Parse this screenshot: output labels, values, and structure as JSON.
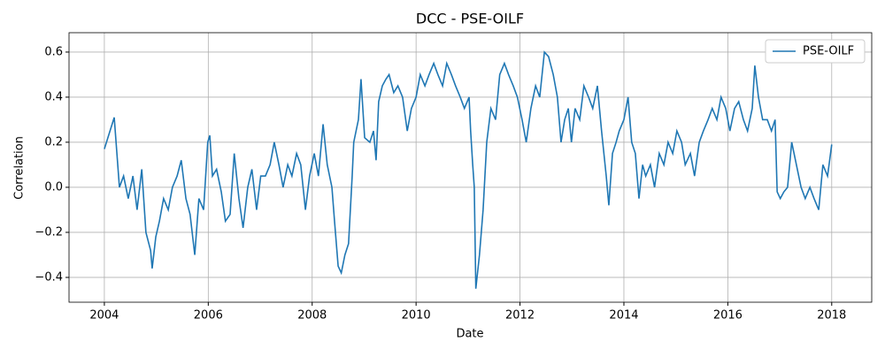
{
  "chart_data": {
    "type": "line",
    "title": "DCC - PSE-OILF",
    "x_label": "Date",
    "y_label": "Correlation",
    "x": [
      2004.0,
      2004.19,
      2004.29,
      2004.37,
      2004.46,
      2004.55,
      2004.63,
      2004.72,
      2004.8,
      2004.89,
      2004.92,
      2004.99,
      2005.06,
      2005.14,
      2005.23,
      2005.31,
      2005.4,
      2005.48,
      2005.57,
      2005.65,
      2005.74,
      2005.82,
      2005.91,
      2005.99,
      2006.03,
      2006.08,
      2006.16,
      2006.25,
      2006.33,
      2006.42,
      2006.5,
      2006.59,
      2006.67,
      2006.76,
      2006.84,
      2006.93,
      2007.01,
      2007.1,
      2007.19,
      2007.27,
      2007.36,
      2007.44,
      2007.53,
      2007.61,
      2007.7,
      2007.78,
      2007.87,
      2007.95,
      2008.04,
      2008.12,
      2008.21,
      2008.29,
      2008.38,
      2008.43,
      2008.5,
      2008.56,
      2008.63,
      2008.7,
      2008.77,
      2008.8,
      2008.89,
      2008.94,
      2009.01,
      2009.11,
      2009.18,
      2009.23,
      2009.28,
      2009.35,
      2009.42,
      2009.48,
      2009.57,
      2009.65,
      2009.74,
      2009.83,
      2009.91,
      2010.0,
      2010.08,
      2010.17,
      2010.25,
      2010.34,
      2010.42,
      2010.51,
      2010.59,
      2010.68,
      2010.76,
      2010.85,
      2010.93,
      2011.02,
      2011.05,
      2011.09,
      2011.12,
      2011.15,
      2011.22,
      2011.29,
      2011.36,
      2011.44,
      2011.53,
      2011.61,
      2011.7,
      2011.78,
      2011.87,
      2011.95,
      2012.04,
      2012.12,
      2012.21,
      2012.3,
      2012.38,
      2012.47,
      2012.55,
      2012.64,
      2012.72,
      2012.79,
      2012.86,
      2012.93,
      2012.99,
      2013.06,
      2013.15,
      2013.23,
      2013.32,
      2013.4,
      2013.49,
      2013.57,
      2013.66,
      2013.71,
      2013.78,
      2013.85,
      2013.91,
      2014.0,
      2014.08,
      2014.15,
      2014.22,
      2014.29,
      2014.36,
      2014.42,
      2014.51,
      2014.59,
      2014.68,
      2014.77,
      2014.85,
      2014.94,
      2015.02,
      2015.11,
      2015.18,
      2015.28,
      2015.36,
      2015.45,
      2015.53,
      2015.62,
      2015.7,
      2015.79,
      2015.87,
      2015.96,
      2016.04,
      2016.13,
      2016.21,
      2016.3,
      2016.38,
      2016.47,
      2016.52,
      2016.59,
      2016.67,
      2016.76,
      2016.84,
      2016.91,
      2016.95,
      2017.01,
      2017.08,
      2017.15,
      2017.23,
      2017.32,
      2017.41,
      2017.49,
      2017.58,
      2017.66,
      2017.75,
      2017.83,
      2017.92,
      2018.0
    ],
    "series": [
      {
        "name": "PSE-OILF",
        "color": "#1f77b4",
        "values": [
          0.17,
          0.31,
          0.0,
          0.05,
          -0.05,
          0.05,
          -0.1,
          0.08,
          -0.2,
          -0.28,
          -0.36,
          -0.22,
          -0.15,
          -0.05,
          -0.1,
          0.0,
          0.05,
          0.12,
          -0.05,
          -0.12,
          -0.3,
          -0.05,
          -0.1,
          0.2,
          0.23,
          0.05,
          0.08,
          -0.02,
          -0.15,
          -0.12,
          0.15,
          -0.05,
          -0.18,
          0.0,
          0.08,
          -0.1,
          0.05,
          0.05,
          0.1,
          0.2,
          0.1,
          0.0,
          0.1,
          0.05,
          0.15,
          0.1,
          -0.1,
          0.05,
          0.15,
          0.05,
          0.28,
          0.1,
          0.0,
          -0.15,
          -0.35,
          -0.38,
          -0.3,
          -0.25,
          0.05,
          0.2,
          0.3,
          0.48,
          0.22,
          0.2,
          0.25,
          0.12,
          0.38,
          0.45,
          0.48,
          0.5,
          0.42,
          0.45,
          0.4,
          0.25,
          0.35,
          0.4,
          0.5,
          0.45,
          0.5,
          0.55,
          0.5,
          0.45,
          0.55,
          0.5,
          0.45,
          0.4,
          0.35,
          0.4,
          0.25,
          0.1,
          0.0,
          -0.45,
          -0.3,
          -0.1,
          0.2,
          0.35,
          0.3,
          0.5,
          0.55,
          0.5,
          0.45,
          0.4,
          0.3,
          0.2,
          0.35,
          0.45,
          0.4,
          0.6,
          0.58,
          0.5,
          0.4,
          0.2,
          0.3,
          0.35,
          0.2,
          0.35,
          0.3,
          0.45,
          0.4,
          0.35,
          0.45,
          0.25,
          0.05,
          -0.08,
          0.15,
          0.2,
          0.25,
          0.3,
          0.4,
          0.2,
          0.15,
          -0.05,
          0.1,
          0.05,
          0.1,
          0.0,
          0.15,
          0.1,
          0.2,
          0.15,
          0.25,
          0.2,
          0.1,
          0.15,
          0.05,
          0.2,
          0.25,
          0.3,
          0.35,
          0.3,
          0.4,
          0.35,
          0.25,
          0.35,
          0.38,
          0.3,
          0.25,
          0.35,
          0.54,
          0.4,
          0.3,
          0.3,
          0.25,
          0.3,
          -0.02,
          -0.05,
          -0.02,
          0.0,
          0.2,
          0.1,
          0.0,
          -0.05,
          0.0,
          -0.05,
          -0.1,
          0.1,
          0.05,
          0.19
        ]
      }
    ],
    "xlim": [
      2003.32,
      2018.77
    ],
    "xticks": [
      2004,
      2006,
      2008,
      2010,
      2012,
      2014,
      2016,
      2018
    ],
    "ylim": [
      -0.51,
      0.686
    ],
    "yticks": [
      {
        "value": -0.4,
        "label": "−0.4"
      },
      {
        "value": -0.2,
        "label": "−0.2"
      },
      {
        "value": 0,
        "label": "0.0"
      },
      0.2,
      0.4,
      0.6
    ],
    "grid": true,
    "legend": "upper right"
  }
}
